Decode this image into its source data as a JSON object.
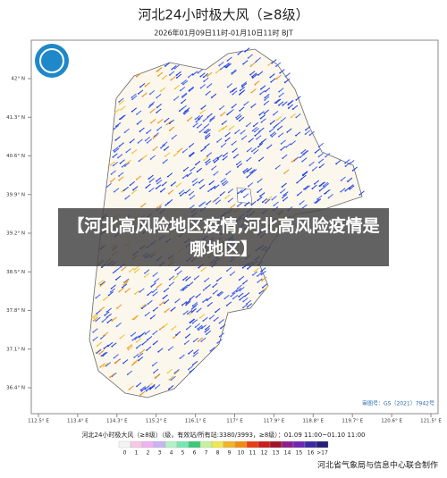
{
  "header": {
    "title": "河北24小时极大风（≥8级）",
    "subtitle": "2026年01月09日11时-01月10日11时 BJT"
  },
  "map": {
    "lat_labels": [
      "42° N",
      "41.3° N",
      "40.6° N",
      "39.9° N",
      "39.2° N",
      "38.5° N",
      "37.8° N",
      "37.1° N",
      "36.4° N"
    ],
    "lon_labels": [
      "112.5° E",
      "113.4° E",
      "114.3° E",
      "115.2° E",
      "116.1° E",
      "117° E",
      "117.9° E",
      "118.8° E",
      "119.7° E",
      "120.6° E",
      "121.5° E"
    ],
    "map_number": "审图号：GS（2021）7942号"
  },
  "banner": "【河北高风险地区疫情,河北高风险疫情是哪地区】",
  "legend": {
    "title": "河北24小时极大风（≥8级）（级，有效站/所有站:3380/3993，≥8级）：01.09 11:00~01.10 11:00",
    "labels": [
      "0",
      "1",
      "2",
      "3",
      "4",
      "5",
      "6",
      "7",
      "8",
      "9",
      "10",
      "11",
      "12",
      "13",
      "14",
      "15",
      "16",
      ">17"
    ],
    "colors": [
      "#f4f4f4",
      "#f6c8e6",
      "#eeb4f0",
      "#c8b4f0",
      "#b4f0c8",
      "#78e6b4",
      "#3cc878",
      "#c8f0a0",
      "#f0e650",
      "#f0b428",
      "#f08c14",
      "#e63c14",
      "#c81e1e",
      "#a01428",
      "#8c1e8c",
      "#6e28b4",
      "#3c28a0",
      "#281e78"
    ]
  },
  "footer": "河北省气象局与信息中心联合制作"
}
